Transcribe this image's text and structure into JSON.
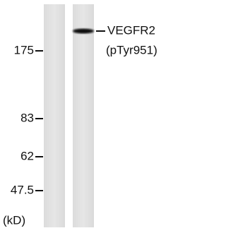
{
  "markers": [
    "175",
    "83",
    "62",
    "47.5"
  ],
  "unit": "(kD)",
  "band_label": {
    "name": "VEGFR2",
    "site": "(pTyr951)"
  }
}
